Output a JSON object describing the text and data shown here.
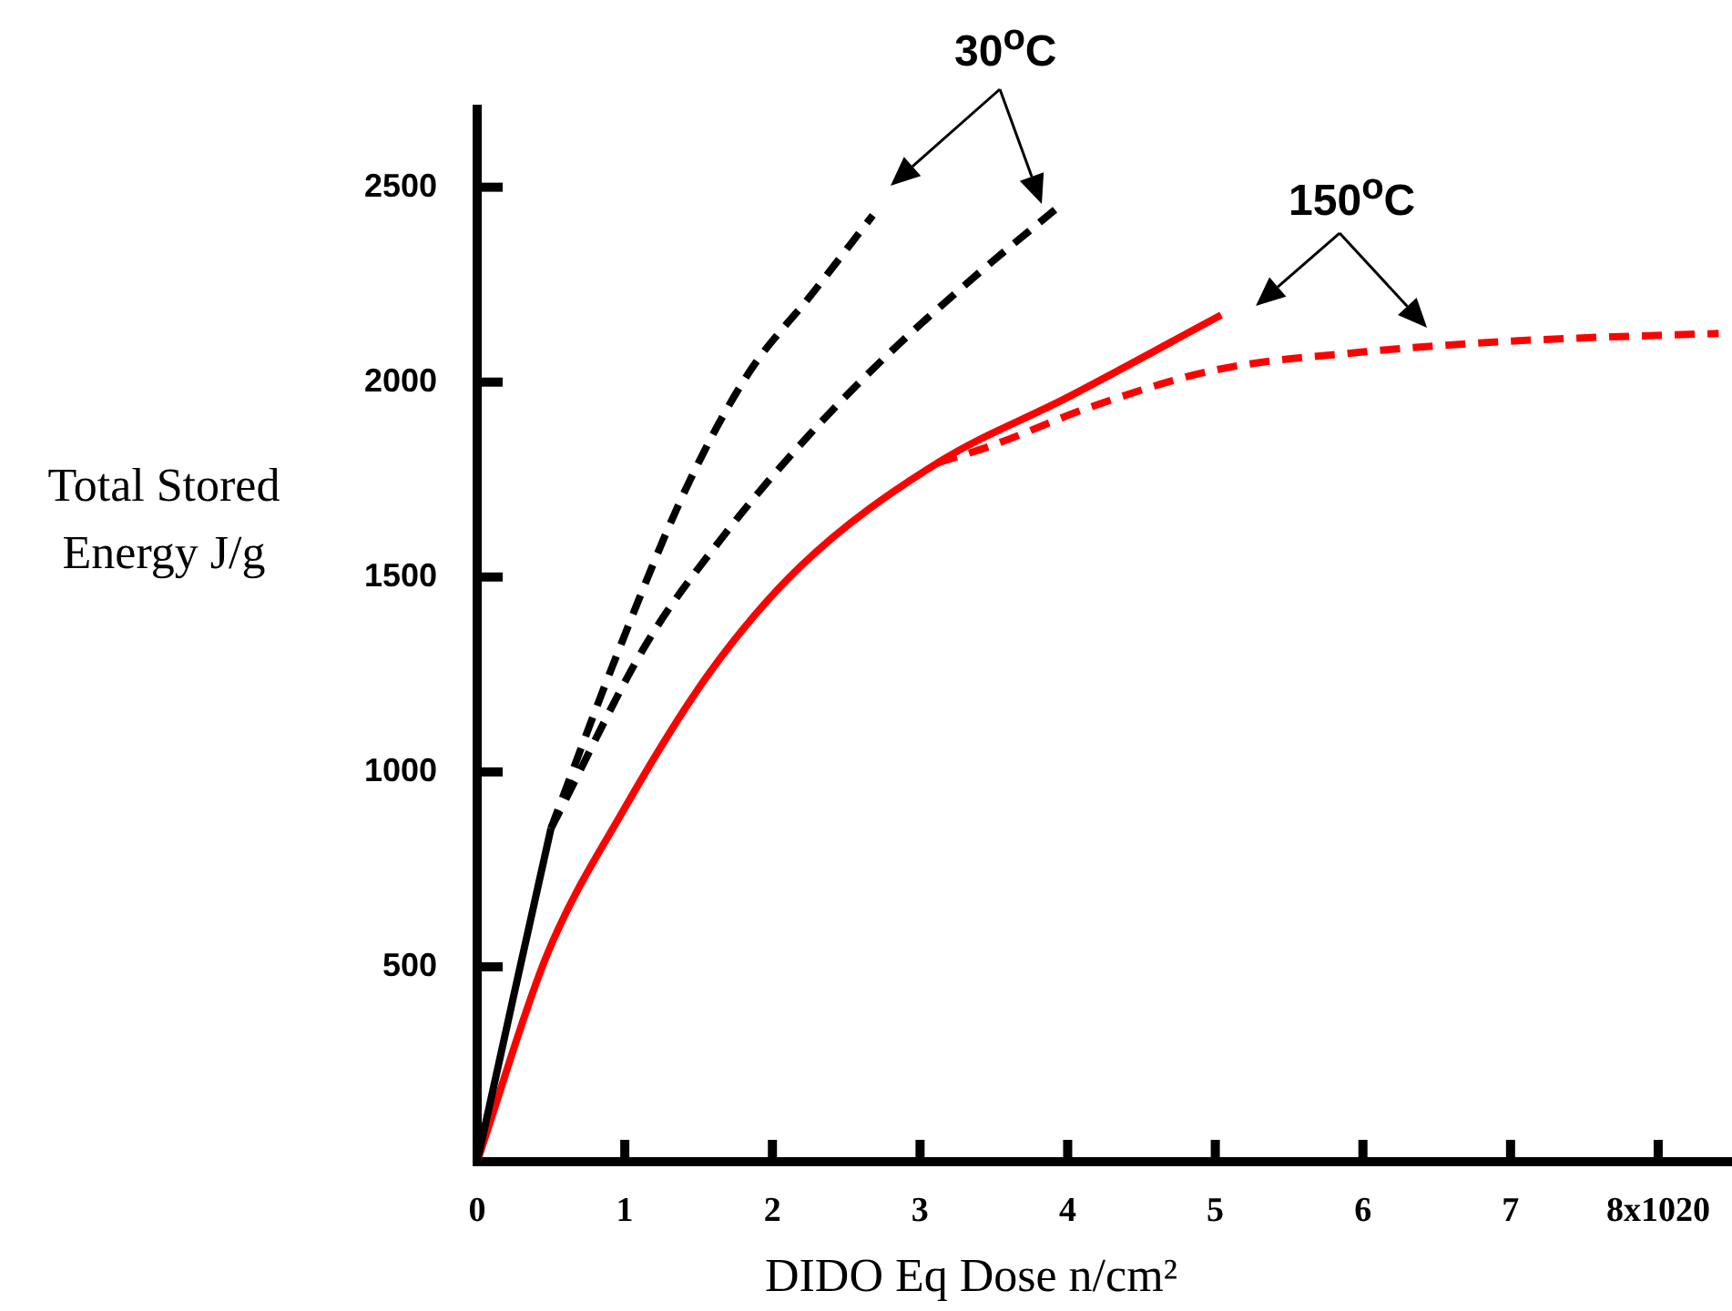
{
  "chart_data": {
    "type": "line",
    "xlabel": "DIDO Eq Dose n/cm²",
    "ylabel": "Total Stored Energy J/g",
    "xlim": [
      0,
      8.5
    ],
    "ylim": [
      0,
      2700
    ],
    "xticks": [
      0,
      1,
      2,
      3,
      4,
      5,
      6,
      7,
      {
        "value": 8,
        "label": "8x1020"
      }
    ],
    "yticks": [
      {
        "value": 500,
        "label": "500"
      },
      {
        "value": 1000,
        "label": "1000"
      },
      {
        "value": 1500,
        "label": "1500"
      },
      {
        "value": 2000,
        "label": "2000"
      },
      {
        "value": 2500,
        "label": "2500"
      }
    ],
    "grid": false,
    "legend": false,
    "marker": "none",
    "annotations": [
      "30$^{o}$C",
      {
        "text": "150$^{o}$C",
        "x": 5.04,
        "y": 2172
      }
    ],
    "series": [
      {
        "color": "#000000",
        "line_style": "solid",
        "x": [
          0,
          0.25,
          0.5
        ],
        "values": [
          0,
          430,
          855
        ]
      },
      {
        "color": "#000000",
        "line_style": "dashed",
        "x": [
          0.5,
          0.94,
          1.41,
          1.83,
          2.28,
          2.68
        ],
        "values": [
          855,
          1294,
          1723,
          2018,
          2232,
          2428
        ]
      },
      {
        "color": "#000000",
        "line_style": "dashed",
        "x": [
          0.5,
          1.15,
          1.67,
          2.19,
          2.75,
          3.38,
          3.93
        ],
        "values": [
          855,
          1331,
          1606,
          1840,
          2059,
          2274,
          2447
        ]
      },
      {
        "color": "#ff0000",
        "line_style": "solid",
        "x": [
          0,
          0.47,
          0.99,
          1.57,
          2.19,
          3.12,
          4.0,
          5.04
        ],
        "values": [
          0,
          528,
          901,
          1252,
          1527,
          1793,
          1961,
          2172
        ]
      },
      {
        "color": "#ff0000",
        "line_style": "dashed",
        "x": [
          3.12,
          3.47,
          4.17,
          5.0,
          6.02,
          7.05,
          8.41
        ],
        "values": [
          1793,
          1835,
          1938,
          2031,
          2078,
          2106,
          2125
        ]
      }
    ]
  }
}
